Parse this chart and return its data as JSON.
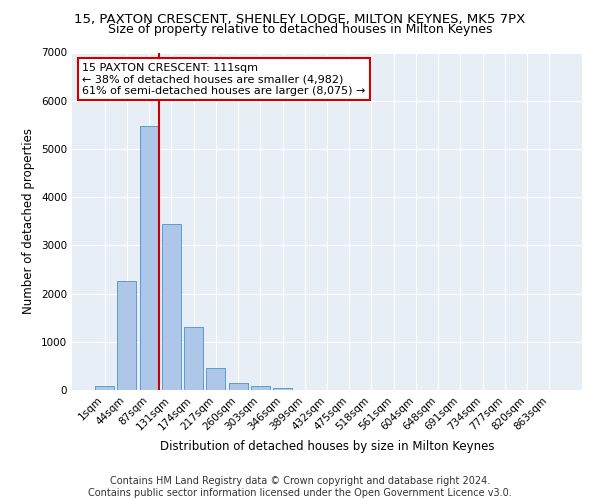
{
  "title": "15, PAXTON CRESCENT, SHENLEY LODGE, MILTON KEYNES, MK5 7PX",
  "subtitle": "Size of property relative to detached houses in Milton Keynes",
  "xlabel": "Distribution of detached houses by size in Milton Keynes",
  "ylabel": "Number of detached properties",
  "footnote1": "Contains HM Land Registry data © Crown copyright and database right 2024.",
  "footnote2": "Contains public sector information licensed under the Open Government Licence v3.0.",
  "bar_labels": [
    "1sqm",
    "44sqm",
    "87sqm",
    "131sqm",
    "174sqm",
    "217sqm",
    "260sqm",
    "303sqm",
    "346sqm",
    "389sqm",
    "432sqm",
    "475sqm",
    "518sqm",
    "561sqm",
    "604sqm",
    "648sqm",
    "691sqm",
    "734sqm",
    "777sqm",
    "820sqm",
    "863sqm"
  ],
  "bar_values": [
    80,
    2270,
    5480,
    3450,
    1310,
    460,
    155,
    90,
    50,
    0,
    0,
    0,
    0,
    0,
    0,
    0,
    0,
    0,
    0,
    0,
    0
  ],
  "bar_color": "#aec6e8",
  "bar_edgecolor": "#5b9bd5",
  "vline_x": 2.43,
  "vline_color": "#cc0000",
  "annotation_text": "15 PAXTON CRESCENT: 111sqm\n← 38% of detached houses are smaller (4,982)\n61% of semi-detached houses are larger (8,075) →",
  "annotation_box_color": "#ffffff",
  "annotation_box_edgecolor": "#cc0000",
  "ylim": [
    0,
    7000
  ],
  "yticks": [
    0,
    1000,
    2000,
    3000,
    4000,
    5000,
    6000,
    7000
  ],
  "background_color": "#e8eef5",
  "grid_color": "#ffffff",
  "title_fontsize": 9.5,
  "subtitle_fontsize": 9,
  "axis_label_fontsize": 8.5,
  "tick_fontsize": 7.5,
  "annotation_fontsize": 8,
  "footnote_fontsize": 7
}
